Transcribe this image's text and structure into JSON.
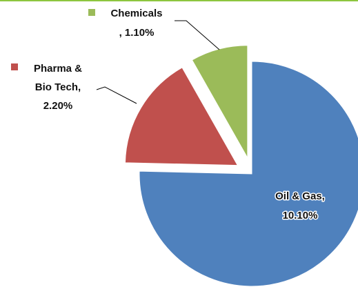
{
  "chart_data": {
    "type": "pie",
    "labels": [
      [
        "Oil & Gas,",
        "10.10%"
      ],
      [
        "Pharma &",
        "Bio Tech,",
        "2.20%"
      ],
      [
        "Chemicals",
        ", 1.10%"
      ]
    ],
    "values": [
      10.1,
      2.2,
      1.1
    ],
    "value_labels": [
      "10.10%",
      "2.20%",
      "1.10%"
    ],
    "colors": [
      "#4f81bd",
      "#c0504d",
      "#9bbb59"
    ]
  }
}
